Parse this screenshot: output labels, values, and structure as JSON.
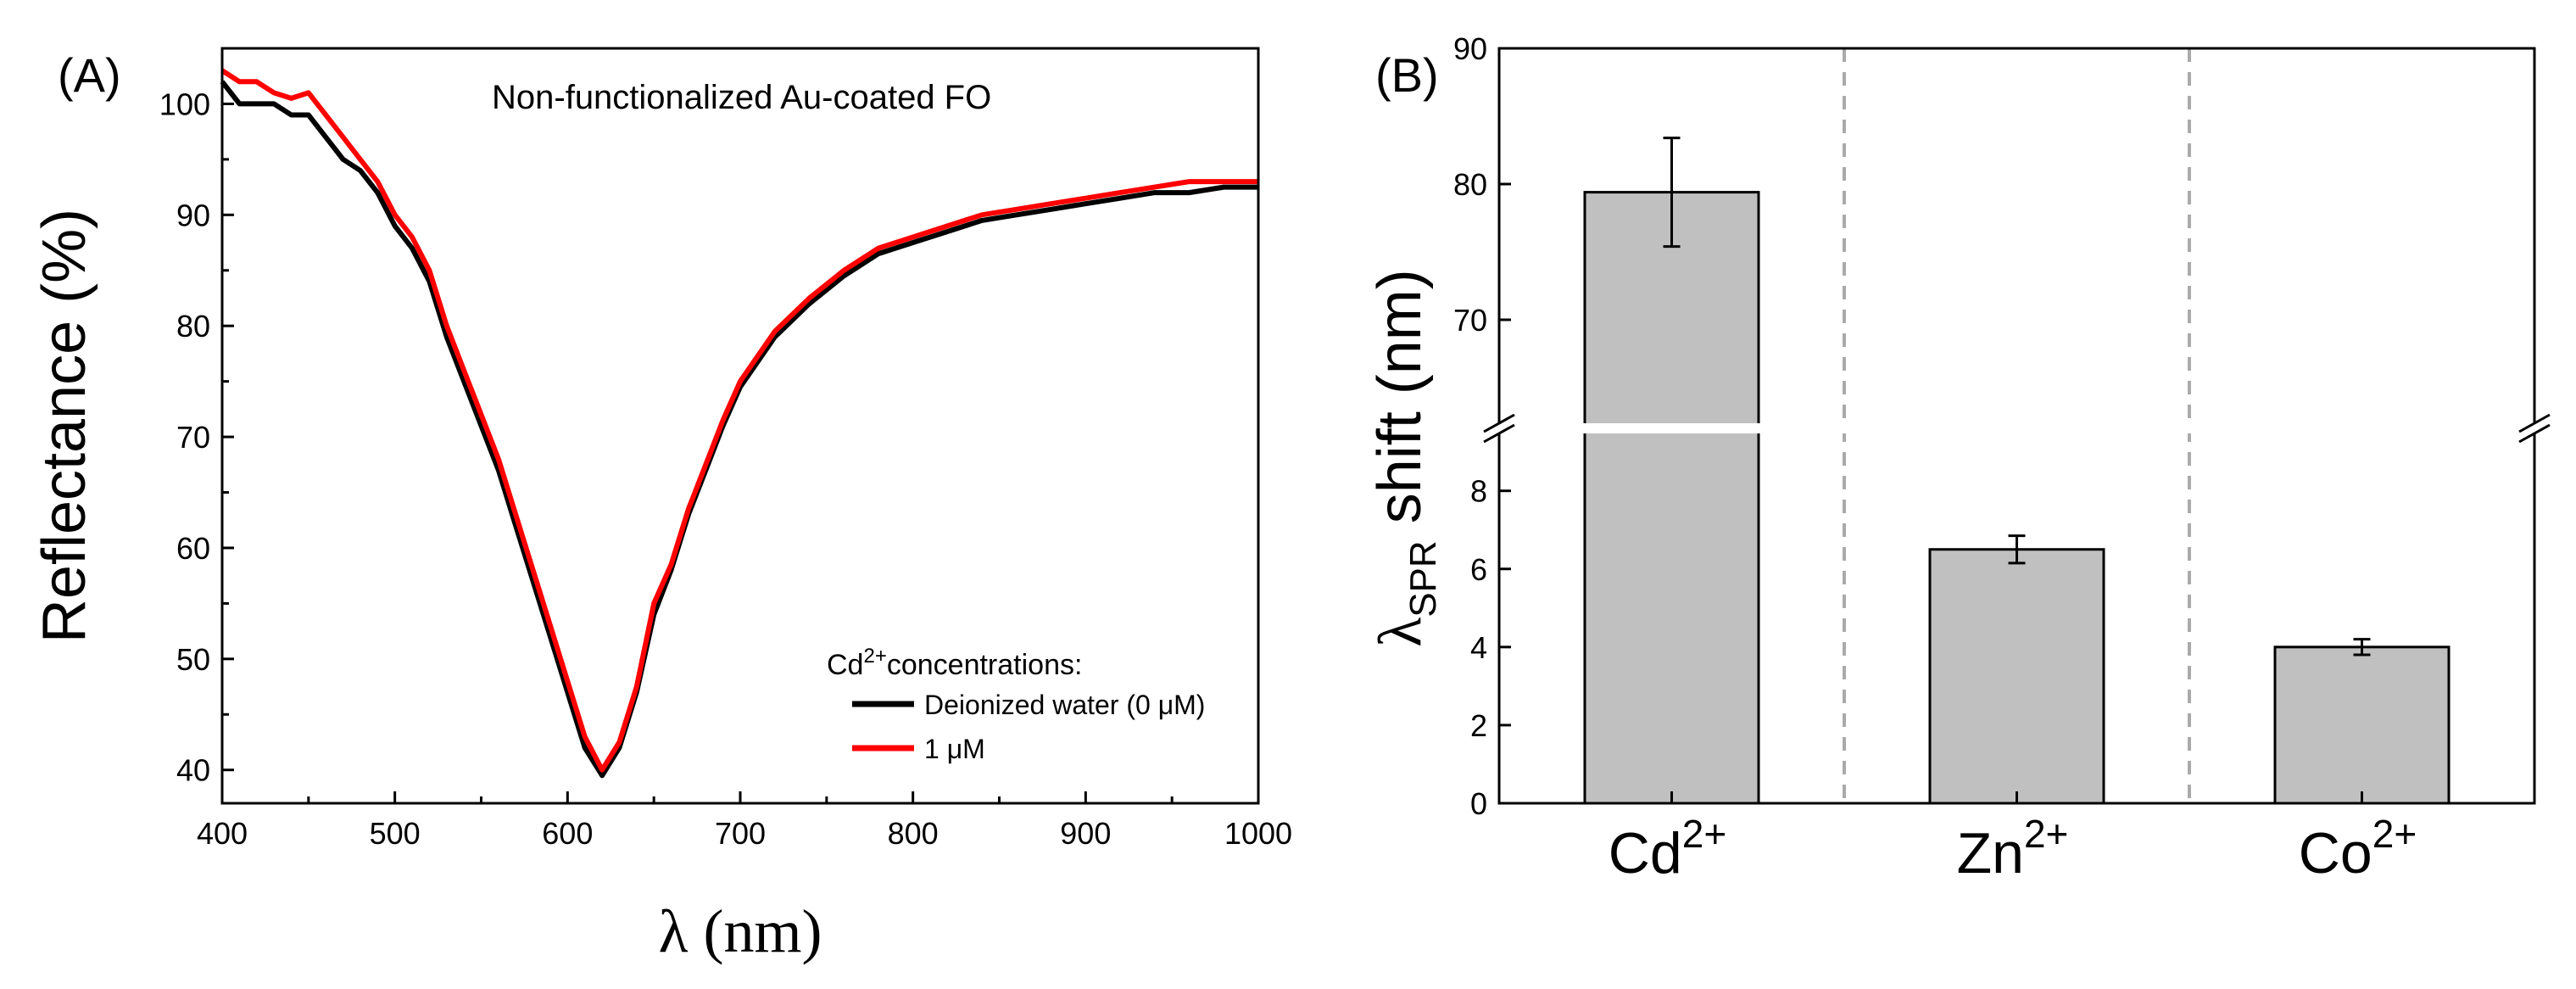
{
  "chart_data": [
    {
      "panel": "(A)",
      "type": "line",
      "title": "Non-functionalized Au-coated FO",
      "xlabel": "λ (nm)",
      "ylabel": "Reflectance (%)",
      "xlim": [
        400,
        1000
      ],
      "ylim": [
        37,
        105
      ],
      "xticks": [
        400,
        500,
        600,
        700,
        800,
        900,
        1000
      ],
      "yticks": [
        40,
        50,
        60,
        70,
        80,
        90,
        100
      ],
      "grid": false,
      "legend": {
        "position": "bottom-right",
        "title_prefix": "Cd",
        "title_sup": "2+",
        "title_suffix": "concentrations:",
        "entries": [
          "Deionized water (0 μM)",
          "1 μM"
        ]
      },
      "series": [
        {
          "name": "Deionized water (0 μM)",
          "color": "#000000",
          "x": [
            400,
            410,
            420,
            430,
            440,
            450,
            460,
            470,
            480,
            490,
            500,
            510,
            520,
            530,
            540,
            550,
            560,
            570,
            580,
            590,
            600,
            610,
            620,
            630,
            640,
            650,
            660,
            670,
            680,
            690,
            700,
            720,
            740,
            760,
            780,
            800,
            820,
            840,
            860,
            880,
            900,
            920,
            940,
            960,
            980,
            1000
          ],
          "y": [
            102,
            100,
            100,
            100,
            99,
            99,
            97,
            95,
            94,
            92,
            89,
            87,
            84,
            79,
            75,
            71,
            67,
            62,
            57,
            52,
            47,
            42,
            39.5,
            42,
            47,
            54,
            58,
            63,
            67,
            71,
            74.5,
            79,
            82,
            84.5,
            86.5,
            87.5,
            88.5,
            89.5,
            90,
            90.5,
            91,
            91.5,
            92,
            92,
            92.5,
            92.5
          ]
        },
        {
          "name": "1 μM",
          "color": "#ff0000",
          "x": [
            400,
            410,
            420,
            430,
            440,
            450,
            460,
            470,
            480,
            490,
            500,
            510,
            520,
            530,
            540,
            550,
            560,
            570,
            580,
            590,
            600,
            610,
            620,
            630,
            640,
            650,
            660,
            670,
            680,
            690,
            700,
            720,
            740,
            760,
            780,
            800,
            820,
            840,
            860,
            880,
            900,
            920,
            940,
            960,
            980,
            1000
          ],
          "y": [
            103,
            102,
            102,
            101,
            100.5,
            101,
            99,
            97,
            95,
            93,
            90,
            88,
            85,
            80,
            76,
            72,
            68,
            63,
            58,
            53,
            48,
            43,
            40,
            42.5,
            47.5,
            55,
            58.5,
            63.5,
            67.5,
            71.5,
            75,
            79.5,
            82.5,
            85,
            87,
            88,
            89,
            90,
            90.5,
            91,
            91.5,
            92,
            92.5,
            93,
            93,
            93
          ]
        }
      ]
    },
    {
      "panel": "(B)",
      "type": "bar",
      "categories": [
        "Cd",
        "Zn",
        "Co"
      ],
      "category_sup": [
        "2+",
        "2+",
        "2+"
      ],
      "values": [
        79.4,
        6.5,
        4.0
      ],
      "errors": [
        4.0,
        0.35,
        0.2
      ],
      "bar_color": "#c0c0c0",
      "ylabel_main": "λ",
      "ylabel_sub": "SPR",
      "ylabel_rest": " shift (nm)",
      "y_axis_break": true,
      "lower_ylim": [
        0,
        9.6
      ],
      "upper_ylim": [
        62,
        90
      ],
      "lower_yticks": [
        0,
        2,
        4,
        6,
        8
      ],
      "upper_yticks": [
        70,
        80,
        90
      ],
      "grid": false
    }
  ]
}
